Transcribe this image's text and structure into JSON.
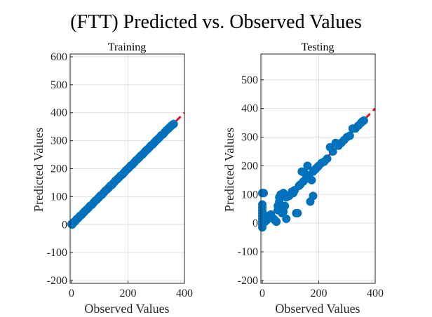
{
  "figure_title": "(FTT) Predicted vs. Observed Values",
  "colors": {
    "points": "#0072BD",
    "ideal_line": "#e8141d",
    "grid": "#dfdfdf",
    "axis": "#262626"
  },
  "chart_data": [
    {
      "type": "scatter",
      "title": "Training",
      "xlabel": "Observed Values",
      "ylabel": "Predicted Values",
      "xlim": [
        -5,
        400
      ],
      "ylim": [
        -210,
        610
      ],
      "xticks": [
        0,
        200,
        400
      ],
      "yticks": [
        -200,
        -100,
        0,
        100,
        200,
        300,
        400,
        500,
        600
      ],
      "ideal_line": {
        "from": [
          0,
          0
        ],
        "to": [
          400,
          400
        ]
      },
      "points": [
        [
          0,
          2
        ],
        [
          2,
          0
        ],
        [
          4,
          4
        ],
        [
          6,
          5
        ],
        [
          8,
          9
        ],
        [
          10,
          10
        ],
        [
          14,
          13
        ],
        [
          18,
          19
        ],
        [
          22,
          22
        ],
        [
          26,
          26
        ],
        [
          30,
          31
        ],
        [
          36,
          35
        ],
        [
          42,
          42
        ],
        [
          48,
          49
        ],
        [
          54,
          54
        ],
        [
          60,
          60
        ],
        [
          66,
          67
        ],
        [
          72,
          71
        ],
        [
          78,
          78
        ],
        [
          84,
          85
        ],
        [
          90,
          90
        ],
        [
          96,
          96
        ],
        [
          102,
          103
        ],
        [
          108,
          107
        ],
        [
          114,
          114
        ],
        [
          120,
          121
        ],
        [
          126,
          126
        ],
        [
          132,
          132
        ],
        [
          138,
          139
        ],
        [
          144,
          143
        ],
        [
          150,
          150
        ],
        [
          156,
          157
        ],
        [
          162,
          162
        ],
        [
          168,
          168
        ],
        [
          174,
          175
        ],
        [
          180,
          179
        ],
        [
          186,
          186
        ],
        [
          192,
          193
        ],
        [
          198,
          198
        ],
        [
          204,
          204
        ],
        [
          210,
          211
        ],
        [
          216,
          215
        ],
        [
          222,
          222
        ],
        [
          228,
          229
        ],
        [
          234,
          234
        ],
        [
          240,
          240
        ],
        [
          246,
          247
        ],
        [
          252,
          251
        ],
        [
          258,
          258
        ],
        [
          264,
          265
        ],
        [
          270,
          270
        ],
        [
          276,
          276
        ],
        [
          282,
          283
        ],
        [
          288,
          287
        ],
        [
          294,
          294
        ],
        [
          300,
          301
        ],
        [
          306,
          306
        ],
        [
          312,
          312
        ],
        [
          318,
          319
        ],
        [
          324,
          323
        ],
        [
          330,
          330
        ],
        [
          336,
          337
        ],
        [
          342,
          342
        ],
        [
          348,
          348
        ],
        [
          354,
          354
        ],
        [
          358,
          357
        ],
        [
          362,
          360
        ]
      ]
    },
    {
      "type": "scatter",
      "title": "Testing",
      "xlabel": "Observed Values",
      "ylabel": "Predicted Values",
      "xlim": [
        -5,
        400
      ],
      "ylim": [
        -210,
        590
      ],
      "xticks": [
        0,
        200,
        400
      ],
      "yticks": [
        -200,
        -100,
        0,
        100,
        200,
        300,
        400,
        500
      ],
      "ideal_line": {
        "from": [
          0,
          0
        ],
        "to": [
          400,
          400
        ]
      },
      "points": [
        [
          0,
          -15
        ],
        [
          0,
          -5
        ],
        [
          0,
          5
        ],
        [
          0,
          15
        ],
        [
          0,
          25
        ],
        [
          0,
          35
        ],
        [
          0,
          45
        ],
        [
          0,
          55
        ],
        [
          0,
          65
        ],
        [
          0,
          105
        ],
        [
          5,
          105
        ],
        [
          5,
          30
        ],
        [
          10,
          5
        ],
        [
          15,
          10
        ],
        [
          20,
          15
        ],
        [
          25,
          25
        ],
        [
          30,
          30
        ],
        [
          35,
          20
        ],
        [
          40,
          15
        ],
        [
          45,
          10
        ],
        [
          50,
          5
        ],
        [
          55,
          60
        ],
        [
          55,
          45
        ],
        [
          60,
          90
        ],
        [
          60,
          75
        ],
        [
          65,
          100
        ],
        [
          70,
          35
        ],
        [
          75,
          40
        ],
        [
          75,
          105
        ],
        [
          80,
          60
        ],
        [
          85,
          90
        ],
        [
          85,
          15
        ],
        [
          90,
          95
        ],
        [
          95,
          95
        ],
        [
          100,
          100
        ],
        [
          105,
          110
        ],
        [
          110,
          105
        ],
        [
          115,
          115
        ],
        [
          120,
          35
        ],
        [
          125,
          35
        ],
        [
          130,
          130
        ],
        [
          135,
          135
        ],
        [
          140,
          180
        ],
        [
          145,
          145
        ],
        [
          150,
          175
        ],
        [
          155,
          155
        ],
        [
          160,
          160
        ],
        [
          160,
          200
        ],
        [
          165,
          165
        ],
        [
          170,
          75
        ],
        [
          175,
          150
        ],
        [
          180,
          95
        ],
        [
          180,
          180
        ],
        [
          185,
          185
        ],
        [
          190,
          190
        ],
        [
          195,
          195
        ],
        [
          200,
          200
        ],
        [
          210,
          210
        ],
        [
          220,
          215
        ],
        [
          230,
          225
        ],
        [
          240,
          265
        ],
        [
          250,
          250
        ],
        [
          260,
          280
        ],
        [
          270,
          270
        ],
        [
          280,
          280
        ],
        [
          290,
          290
        ],
        [
          300,
          300
        ],
        [
          310,
          305
        ],
        [
          320,
          330
        ],
        [
          330,
          330
        ],
        [
          340,
          340
        ],
        [
          350,
          350
        ],
        [
          355,
          355
        ],
        [
          360,
          358
        ]
      ]
    }
  ]
}
